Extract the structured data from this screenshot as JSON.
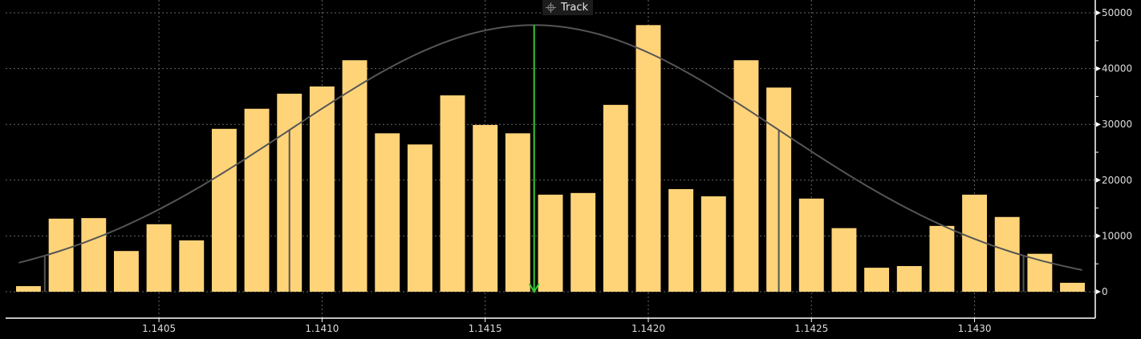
{
  "toolbar": {
    "track_label": "Track",
    "track_icon": "crosshair-icon"
  },
  "colors": {
    "bars": "#ffd479",
    "curve": "#555555",
    "mean_marker": "#33cc33",
    "background": "#000000",
    "axis": "#ffffff",
    "grid": "#666666"
  },
  "chart_data": {
    "type": "bar",
    "title": "",
    "xlabel": "",
    "ylabel": "",
    "x": [
      1.1401,
      1.1402,
      1.1403,
      1.1404,
      1.1405,
      1.1406,
      1.1407,
      1.1408,
      1.1409,
      1.141,
      1.1411,
      1.1412,
      1.1413,
      1.1414,
      1.1415,
      1.1416,
      1.1417,
      1.1418,
      1.1419,
      1.142,
      1.1421,
      1.1422,
      1.1423,
      1.1424,
      1.1425,
      1.1426,
      1.1427,
      1.1428,
      1.1429,
      1.143,
      1.1431,
      1.1432,
      1.1433
    ],
    "values": [
      1000,
      13100,
      13200,
      7300,
      12100,
      9200,
      29200,
      32800,
      35500,
      36800,
      41500,
      28400,
      26400,
      35200,
      29900,
      28400,
      17400,
      17700,
      33500,
      47800,
      18400,
      17100,
      41500,
      36600,
      16700,
      11400,
      4300,
      4600,
      11800,
      17400,
      13400,
      6800,
      1600
    ],
    "xlim": [
      1.14003,
      1.14337
    ],
    "ylim": [
      -4740,
      52300
    ],
    "x_ticks": [
      "1.1405",
      "1.1410",
      "1.1415",
      "1.1420",
      "1.1425",
      "1.1430"
    ],
    "y_ticks": [
      "0",
      "10000",
      "20000",
      "30000",
      "40000",
      "50000"
    ],
    "grid": true,
    "y_axis_side": "right",
    "overlay_curve": {
      "type": "normal-fit",
      "mean": 1.14165,
      "stdev": 0.00075,
      "peak": 47800
    },
    "stdev_lines": [
      -2,
      -1,
      1,
      2
    ],
    "mean_marker": 1.14165
  }
}
